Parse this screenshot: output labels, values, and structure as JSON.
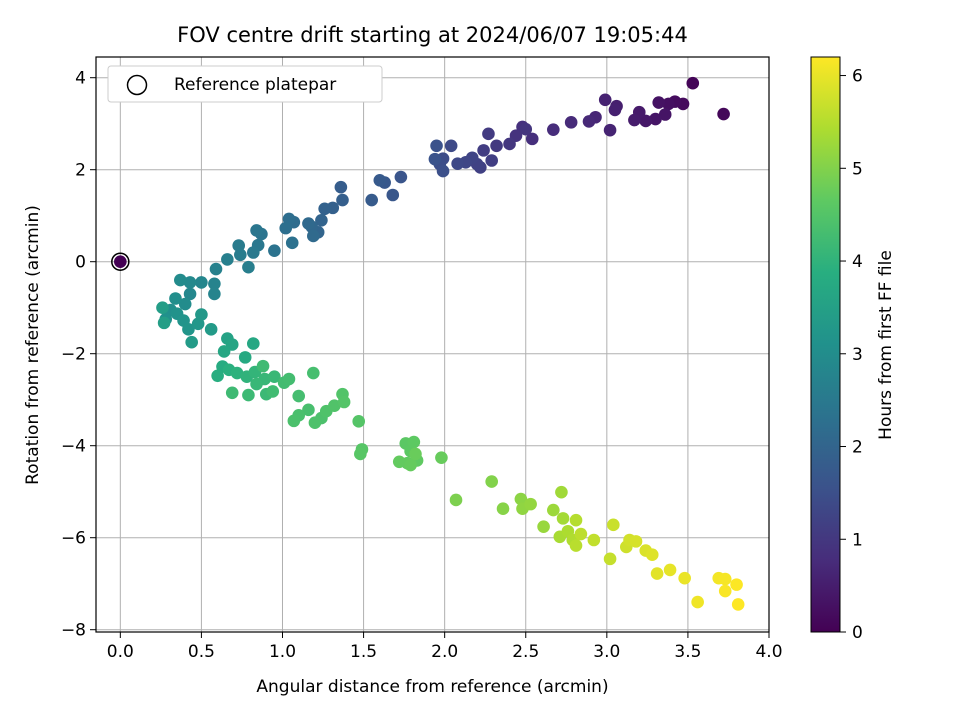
{
  "chart_data": {
    "type": "scatter",
    "title": "FOV centre drift starting at 2024/06/07 19:05:44",
    "xlabel": "Angular distance from reference (arcmin)",
    "ylabel": "Rotation from reference (arcmin)",
    "xlim": [
      -0.15,
      4.0
    ],
    "ylim": [
      -8.05,
      4.45
    ],
    "xticks": [
      "0.0",
      "0.5",
      "1.0",
      "1.5",
      "2.0",
      "2.5",
      "3.0",
      "3.5",
      "4.0"
    ],
    "yticks": [
      "−8",
      "−6",
      "−4",
      "−2",
      "0",
      "2",
      "4"
    ],
    "xtick_values": [
      0,
      0.5,
      1,
      1.5,
      2,
      2.5,
      3,
      3.5,
      4
    ],
    "ytick_values": [
      -8,
      -6,
      -4,
      -2,
      0,
      2,
      4
    ],
    "grid": true,
    "legend": {
      "position": "upper-left",
      "entries": [
        "Reference platepar"
      ]
    },
    "reference_point": {
      "x": 0.0,
      "y": 0.0
    },
    "colorbar": {
      "label": "Hours from first FF file",
      "range": [
        0,
        6.2
      ],
      "ticks": [
        "0",
        "1",
        "2",
        "3",
        "4",
        "5",
        "6"
      ],
      "tick_values": [
        0,
        1,
        2,
        3,
        4,
        5,
        6
      ],
      "colormap": "viridis"
    },
    "series": [
      {
        "points": [
          {
            "x": 3.53,
            "y": 3.88,
            "t": 0.05
          },
          {
            "x": 3.72,
            "y": 3.21,
            "t": 0.1
          },
          {
            "x": 3.47,
            "y": 3.43,
            "t": 0.15
          },
          {
            "x": 3.42,
            "y": 3.48,
            "t": 0.2
          },
          {
            "x": 3.38,
            "y": 3.43,
            "t": 0.25
          },
          {
            "x": 3.32,
            "y": 3.46,
            "t": 0.3
          },
          {
            "x": 3.36,
            "y": 3.2,
            "t": 0.33
          },
          {
            "x": 3.3,
            "y": 3.1,
            "t": 0.36
          },
          {
            "x": 3.24,
            "y": 3.06,
            "t": 0.4
          },
          {
            "x": 3.2,
            "y": 3.25,
            "t": 0.44
          },
          {
            "x": 3.17,
            "y": 3.08,
            "t": 0.48
          },
          {
            "x": 3.06,
            "y": 3.38,
            "t": 0.52
          },
          {
            "x": 3.05,
            "y": 3.3,
            "t": 0.55
          },
          {
            "x": 2.99,
            "y": 3.52,
            "t": 0.58
          },
          {
            "x": 3.02,
            "y": 2.86,
            "t": 0.62
          },
          {
            "x": 2.93,
            "y": 3.14,
            "t": 0.66
          },
          {
            "x": 2.89,
            "y": 3.05,
            "t": 0.7
          },
          {
            "x": 2.78,
            "y": 3.03,
            "t": 0.74
          },
          {
            "x": 2.67,
            "y": 2.87,
            "t": 0.78
          },
          {
            "x": 2.54,
            "y": 2.67,
            "t": 0.82
          },
          {
            "x": 2.48,
            "y": 2.93,
            "t": 0.86
          },
          {
            "x": 2.44,
            "y": 2.74,
            "t": 0.9
          },
          {
            "x": 2.5,
            "y": 2.88,
            "t": 0.94
          },
          {
            "x": 2.4,
            "y": 2.56,
            "t": 0.98
          },
          {
            "x": 2.32,
            "y": 2.52,
            "t": 1.02
          },
          {
            "x": 2.27,
            "y": 2.78,
            "t": 1.06
          },
          {
            "x": 2.24,
            "y": 2.42,
            "t": 1.1
          },
          {
            "x": 2.29,
            "y": 2.2,
            "t": 1.14
          },
          {
            "x": 2.22,
            "y": 2.05,
            "t": 1.18
          },
          {
            "x": 2.2,
            "y": 2.12,
            "t": 1.22
          },
          {
            "x": 2.17,
            "y": 2.26,
            "t": 1.26
          },
          {
            "x": 2.13,
            "y": 2.16,
            "t": 1.3
          },
          {
            "x": 2.08,
            "y": 2.13,
            "t": 1.34
          },
          {
            "x": 2.04,
            "y": 2.52,
            "t": 1.38
          },
          {
            "x": 1.99,
            "y": 2.24,
            "t": 1.42
          },
          {
            "x": 1.97,
            "y": 2.12,
            "t": 1.46
          },
          {
            "x": 1.99,
            "y": 1.97,
            "t": 1.5
          },
          {
            "x": 1.95,
            "y": 2.52,
            "t": 1.54
          },
          {
            "x": 1.94,
            "y": 2.23,
            "t": 1.58
          },
          {
            "x": 1.73,
            "y": 1.84,
            "t": 1.62
          },
          {
            "x": 1.68,
            "y": 1.45,
            "t": 1.66
          },
          {
            "x": 1.63,
            "y": 1.72,
            "t": 1.7
          },
          {
            "x": 1.6,
            "y": 1.77,
            "t": 1.74
          },
          {
            "x": 1.55,
            "y": 1.34,
            "t": 1.78
          },
          {
            "x": 1.36,
            "y": 1.62,
            "t": 1.82
          },
          {
            "x": 1.37,
            "y": 1.34,
            "t": 1.86
          },
          {
            "x": 1.31,
            "y": 1.17,
            "t": 1.9
          },
          {
            "x": 1.26,
            "y": 1.15,
            "t": 1.94
          },
          {
            "x": 1.24,
            "y": 0.9,
            "t": 1.98
          },
          {
            "x": 1.22,
            "y": 0.64,
            "t": 2.02
          },
          {
            "x": 1.18,
            "y": 0.76,
            "t": 2.06
          },
          {
            "x": 1.16,
            "y": 0.83,
            "t": 2.1
          },
          {
            "x": 1.19,
            "y": 0.56,
            "t": 2.14
          },
          {
            "x": 1.07,
            "y": 0.86,
            "t": 2.18
          },
          {
            "x": 1.04,
            "y": 0.93,
            "t": 2.22
          },
          {
            "x": 1.02,
            "y": 0.73,
            "t": 2.26
          },
          {
            "x": 1.06,
            "y": 0.41,
            "t": 2.3
          },
          {
            "x": 0.95,
            "y": 0.24,
            "t": 2.34
          },
          {
            "x": 0.87,
            "y": 0.6,
            "t": 2.38
          },
          {
            "x": 0.84,
            "y": 0.68,
            "t": 2.42
          },
          {
            "x": 0.85,
            "y": 0.36,
            "t": 2.46
          },
          {
            "x": 0.82,
            "y": 0.2,
            "t": 2.5
          },
          {
            "x": 0.73,
            "y": 0.35,
            "t": 2.54
          },
          {
            "x": 0.74,
            "y": 0.15,
            "t": 2.58
          },
          {
            "x": 0.79,
            "y": -0.12,
            "t": 2.62
          },
          {
            "x": 0.66,
            "y": 0.05,
            "t": 2.66
          },
          {
            "x": 0.59,
            "y": -0.16,
            "t": 2.7
          },
          {
            "x": 0.58,
            "y": -0.48,
            "t": 2.74
          },
          {
            "x": 0.58,
            "y": -0.7,
            "t": 2.78
          },
          {
            "x": 0.5,
            "y": -0.45,
            "t": 2.82
          },
          {
            "x": 0.43,
            "y": -0.7,
            "t": 2.86
          },
          {
            "x": 0.43,
            "y": -0.45,
            "t": 2.9
          },
          {
            "x": 0.37,
            "y": -0.4,
            "t": 2.94
          },
          {
            "x": 0.4,
            "y": -0.92,
            "t": 2.98
          },
          {
            "x": 0.34,
            "y": -0.8,
            "t": 3.02
          },
          {
            "x": 0.31,
            "y": -1.05,
            "t": 3.06
          },
          {
            "x": 0.28,
            "y": -1.25,
            "t": 3.1
          },
          {
            "x": 0.35,
            "y": -1.13,
            "t": 3.14
          },
          {
            "x": 0.39,
            "y": -1.28,
            "t": 3.18
          },
          {
            "x": 0.42,
            "y": -1.47,
            "t": 3.22
          },
          {
            "x": 0.48,
            "y": -1.35,
            "t": 3.26
          },
          {
            "x": 0.5,
            "y": -1.15,
            "t": 3.3
          },
          {
            "x": 0.56,
            "y": -1.47,
            "t": 3.34
          },
          {
            "x": 0.44,
            "y": -1.75,
            "t": 3.38
          },
          {
            "x": 0.26,
            "y": -1.0,
            "t": 3.42
          },
          {
            "x": 0.27,
            "y": -1.33,
            "t": 3.46
          },
          {
            "x": 0.66,
            "y": -1.67,
            "t": 3.55
          },
          {
            "x": 0.69,
            "y": -1.8,
            "t": 3.6
          },
          {
            "x": 0.64,
            "y": -1.95,
            "t": 3.65
          },
          {
            "x": 0.82,
            "y": -1.78,
            "t": 3.7
          },
          {
            "x": 0.77,
            "y": -2.08,
            "t": 3.75
          },
          {
            "x": 0.63,
            "y": -2.28,
            "t": 3.8
          },
          {
            "x": 0.6,
            "y": -2.48,
            "t": 3.85
          },
          {
            "x": 0.67,
            "y": -2.35,
            "t": 3.9
          },
          {
            "x": 0.72,
            "y": -2.42,
            "t": 3.95
          },
          {
            "x": 0.78,
            "y": -2.5,
            "t": 4.0
          },
          {
            "x": 0.83,
            "y": -2.4,
            "t": 4.05
          },
          {
            "x": 0.89,
            "y": -2.55,
            "t": 4.1
          },
          {
            "x": 0.84,
            "y": -2.66,
            "t": 4.12
          },
          {
            "x": 0.95,
            "y": -2.5,
            "t": 4.14
          },
          {
            "x": 0.9,
            "y": -2.88,
            "t": 4.16
          },
          {
            "x": 0.79,
            "y": -2.9,
            "t": 4.18
          },
          {
            "x": 0.69,
            "y": -2.85,
            "t": 4.2
          },
          {
            "x": 0.88,
            "y": -2.27,
            "t": 4.22
          },
          {
            "x": 0.94,
            "y": -2.82,
            "t": 4.24
          },
          {
            "x": 1.01,
            "y": -2.63,
            "t": 4.26
          },
          {
            "x": 1.04,
            "y": -2.55,
            "t": 4.28
          },
          {
            "x": 1.1,
            "y": -2.92,
            "t": 4.3
          },
          {
            "x": 1.19,
            "y": -2.42,
            "t": 4.32
          },
          {
            "x": 1.16,
            "y": -3.22,
            "t": 4.34
          },
          {
            "x": 1.1,
            "y": -3.34,
            "t": 4.36
          },
          {
            "x": 1.07,
            "y": -3.46,
            "t": 4.38
          },
          {
            "x": 1.24,
            "y": -3.4,
            "t": 4.4
          },
          {
            "x": 1.2,
            "y": -3.5,
            "t": 4.42
          },
          {
            "x": 1.27,
            "y": -3.25,
            "t": 4.44
          },
          {
            "x": 1.32,
            "y": -3.13,
            "t": 4.46
          },
          {
            "x": 1.37,
            "y": -2.88,
            "t": 4.48
          },
          {
            "x": 1.38,
            "y": -3.05,
            "t": 4.5
          },
          {
            "x": 1.47,
            "y": -3.47,
            "t": 4.52
          },
          {
            "x": 1.49,
            "y": -4.08,
            "t": 4.54
          },
          {
            "x": 1.48,
            "y": -4.18,
            "t": 4.56
          },
          {
            "x": 1.76,
            "y": -3.95,
            "t": 4.6
          },
          {
            "x": 1.79,
            "y": -4.12,
            "t": 4.62
          },
          {
            "x": 1.81,
            "y": -3.92,
            "t": 4.64
          },
          {
            "x": 1.83,
            "y": -4.32,
            "t": 4.66
          },
          {
            "x": 1.77,
            "y": -4.38,
            "t": 4.68
          },
          {
            "x": 1.72,
            "y": -4.35,
            "t": 4.7
          },
          {
            "x": 1.79,
            "y": -4.42,
            "t": 4.72
          },
          {
            "x": 1.98,
            "y": -4.26,
            "t": 4.74
          },
          {
            "x": 1.82,
            "y": -4.18,
            "t": 4.76
          },
          {
            "x": 2.07,
            "y": -5.18,
            "t": 4.95
          },
          {
            "x": 2.29,
            "y": -4.78,
            "t": 5.0
          },
          {
            "x": 2.36,
            "y": -5.37,
            "t": 5.05
          },
          {
            "x": 2.47,
            "y": -5.16,
            "t": 5.1
          },
          {
            "x": 2.48,
            "y": -5.37,
            "t": 5.14
          },
          {
            "x": 2.53,
            "y": -5.27,
            "t": 5.18
          },
          {
            "x": 2.61,
            "y": -5.76,
            "t": 5.22
          },
          {
            "x": 2.67,
            "y": -5.4,
            "t": 5.26
          },
          {
            "x": 2.72,
            "y": -5.01,
            "t": 5.3
          },
          {
            "x": 2.73,
            "y": -5.58,
            "t": 5.34
          },
          {
            "x": 2.71,
            "y": -5.98,
            "t": 5.38
          },
          {
            "x": 2.76,
            "y": -5.86,
            "t": 5.42
          },
          {
            "x": 2.79,
            "y": -6.05,
            "t": 5.46
          },
          {
            "x": 2.81,
            "y": -5.62,
            "t": 5.5
          },
          {
            "x": 2.81,
            "y": -6.17,
            "t": 5.54
          },
          {
            "x": 2.84,
            "y": -5.92,
            "t": 5.58
          },
          {
            "x": 2.92,
            "y": -6.05,
            "t": 5.62
          },
          {
            "x": 3.02,
            "y": -6.46,
            "t": 5.66
          },
          {
            "x": 3.04,
            "y": -5.72,
            "t": 5.7
          },
          {
            "x": 3.12,
            "y": -6.2,
            "t": 5.74
          },
          {
            "x": 3.14,
            "y": -6.05,
            "t": 5.78
          },
          {
            "x": 3.18,
            "y": -6.08,
            "t": 5.82
          },
          {
            "x": 3.24,
            "y": -6.28,
            "t": 5.86
          },
          {
            "x": 3.28,
            "y": -6.37,
            "t": 5.9
          },
          {
            "x": 3.31,
            "y": -6.78,
            "t": 5.94
          },
          {
            "x": 3.39,
            "y": -6.7,
            "t": 5.98
          },
          {
            "x": 3.48,
            "y": -6.88,
            "t": 6.02
          },
          {
            "x": 3.56,
            "y": -7.4,
            "t": 6.06
          },
          {
            "x": 3.69,
            "y": -6.88,
            "t": 6.1
          },
          {
            "x": 3.73,
            "y": -6.9,
            "t": 6.13
          },
          {
            "x": 3.73,
            "y": -7.16,
            "t": 6.16
          },
          {
            "x": 3.8,
            "y": -7.02,
            "t": 6.19
          },
          {
            "x": 3.81,
            "y": -7.45,
            "t": 6.22
          }
        ]
      }
    ]
  }
}
